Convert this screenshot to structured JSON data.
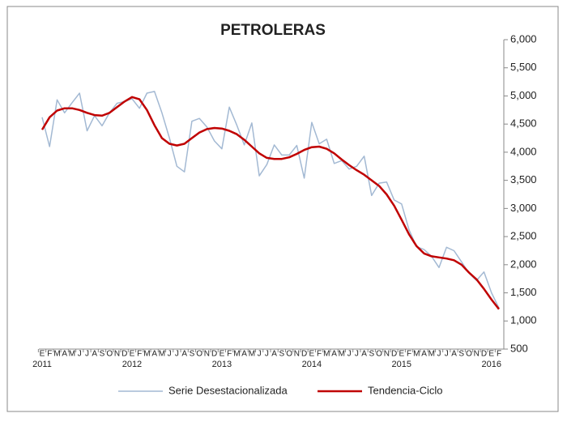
{
  "chart_data": {
    "type": "line",
    "title": "PETROLERAS",
    "categories": [
      "E",
      "F",
      "M",
      "A",
      "M",
      "J",
      "J",
      "A",
      "S",
      "O",
      "N",
      "D",
      "E",
      "F",
      "M",
      "A",
      "M",
      "J",
      "J",
      "A",
      "S",
      "O",
      "N",
      "D",
      "E",
      "F",
      "M",
      "A",
      "M",
      "J",
      "J",
      "A",
      "S",
      "O",
      "N",
      "D",
      "E",
      "F",
      "M",
      "A",
      "M",
      "J",
      "J",
      "A",
      "S",
      "O",
      "N",
      "D",
      "E",
      "F",
      "M",
      "A",
      "M",
      "J",
      "J",
      "A",
      "S",
      "O",
      "N",
      "D",
      "E",
      "F"
    ],
    "years": [
      "2011",
      "2012",
      "2013",
      "2014",
      "2015",
      "2016"
    ],
    "series": [
      {
        "name": "Serie Desestacionalizada",
        "color": "#a3b9d3",
        "width": 1.5,
        "values": [
          4620,
          4100,
          4930,
          4700,
          4880,
          5050,
          4380,
          4650,
          4470,
          4700,
          4870,
          4900,
          4950,
          4780,
          5050,
          5080,
          4700,
          4250,
          3750,
          3650,
          4550,
          4600,
          4450,
          4200,
          4060,
          4800,
          4480,
          4130,
          4520,
          3580,
          3780,
          4130,
          3950,
          3950,
          4120,
          3540,
          4530,
          4150,
          4230,
          3800,
          3850,
          3700,
          3750,
          3930,
          3230,
          3450,
          3470,
          3150,
          3080,
          2620,
          2320,
          2270,
          2150,
          1950,
          2310,
          2250,
          2050,
          1850,
          1720,
          1870,
          1500,
          1230
        ]
      },
      {
        "name": "Tendencia-Ciclo",
        "color": "#c00000",
        "width": 2.5,
        "values": [
          4400,
          4620,
          4740,
          4780,
          4780,
          4750,
          4700,
          4660,
          4650,
          4700,
          4800,
          4900,
          4980,
          4940,
          4750,
          4480,
          4250,
          4150,
          4120,
          4150,
          4250,
          4350,
          4410,
          4430,
          4420,
          4380,
          4320,
          4220,
          4100,
          3980,
          3900,
          3880,
          3880,
          3910,
          3970,
          4040,
          4090,
          4100,
          4060,
          3980,
          3870,
          3770,
          3680,
          3600,
          3500,
          3400,
          3250,
          3050,
          2800,
          2540,
          2330,
          2200,
          2150,
          2130,
          2110,
          2080,
          2000,
          1860,
          1740,
          1570,
          1380,
          1210
        ]
      }
    ],
    "ylim": [
      500,
      6000
    ],
    "yticks": [
      500,
      {
        "value": 1000,
        "label": "1,000"
      },
      {
        "value": 1500,
        "label": "1,500"
      },
      {
        "value": 2000,
        "label": "2,000"
      },
      {
        "value": 2500,
        "label": "2,500"
      },
      {
        "value": 3000,
        "label": "3,000"
      },
      {
        "value": 3500,
        "label": "3,500"
      },
      {
        "value": 4000,
        "label": "4,000"
      },
      {
        "value": 4500,
        "label": "4,500"
      },
      {
        "value": 5000,
        "label": "5,000"
      },
      {
        "value": 5500,
        "label": "5,500"
      },
      {
        "value": 6000,
        "label": "6,000"
      }
    ],
    "grid": false
  }
}
